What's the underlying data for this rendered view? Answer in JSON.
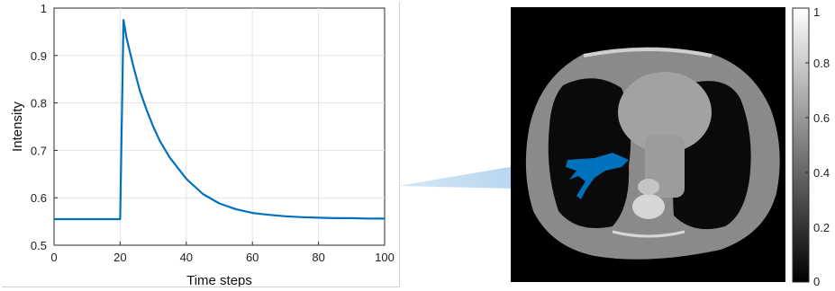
{
  "chart_data": [
    {
      "type": "line",
      "xlabel": "Time steps",
      "ylabel": "Intensity",
      "xlim": [
        0,
        100
      ],
      "ylim": [
        0.5,
        1
      ],
      "xticks": [
        0,
        20,
        40,
        60,
        80,
        100
      ],
      "yticks": [
        0.5,
        0.6,
        0.7,
        0.8,
        0.9,
        1
      ],
      "xtick_labels": [
        "0",
        "20",
        "40",
        "60",
        "80",
        "100"
      ],
      "ytick_labels": [
        "0.5",
        "0.6",
        "0.7",
        "0.8",
        "0.9",
        "1"
      ],
      "grid": true,
      "line_color": "#0072bd",
      "series": [
        {
          "x": [
            0,
            20,
            21,
            22,
            24,
            26,
            28,
            30,
            32,
            35,
            40,
            45,
            50,
            55,
            60,
            65,
            70,
            75,
            80,
            85,
            90,
            95,
            100
          ],
          "y": [
            0.555,
            0.555,
            0.975,
            0.935,
            0.877,
            0.825,
            0.785,
            0.75,
            0.72,
            0.685,
            0.64,
            0.608,
            0.588,
            0.576,
            0.568,
            0.564,
            0.561,
            0.559,
            0.558,
            0.557,
            0.557,
            0.556,
            0.556
          ]
        }
      ]
    },
    {
      "type": "heatmap",
      "colormap": "gray",
      "colorbar_range": [
        0,
        1
      ],
      "colorbar_ticks": [
        0,
        0.2,
        0.4,
        0.6,
        0.8,
        1
      ],
      "colorbar_tick_labels": [
        "0",
        "0.2",
        "0.4",
        "0.6",
        "0.8",
        "1"
      ],
      "overlay_color": "#0072bd"
    }
  ],
  "connector_color": "#9ec9e8"
}
